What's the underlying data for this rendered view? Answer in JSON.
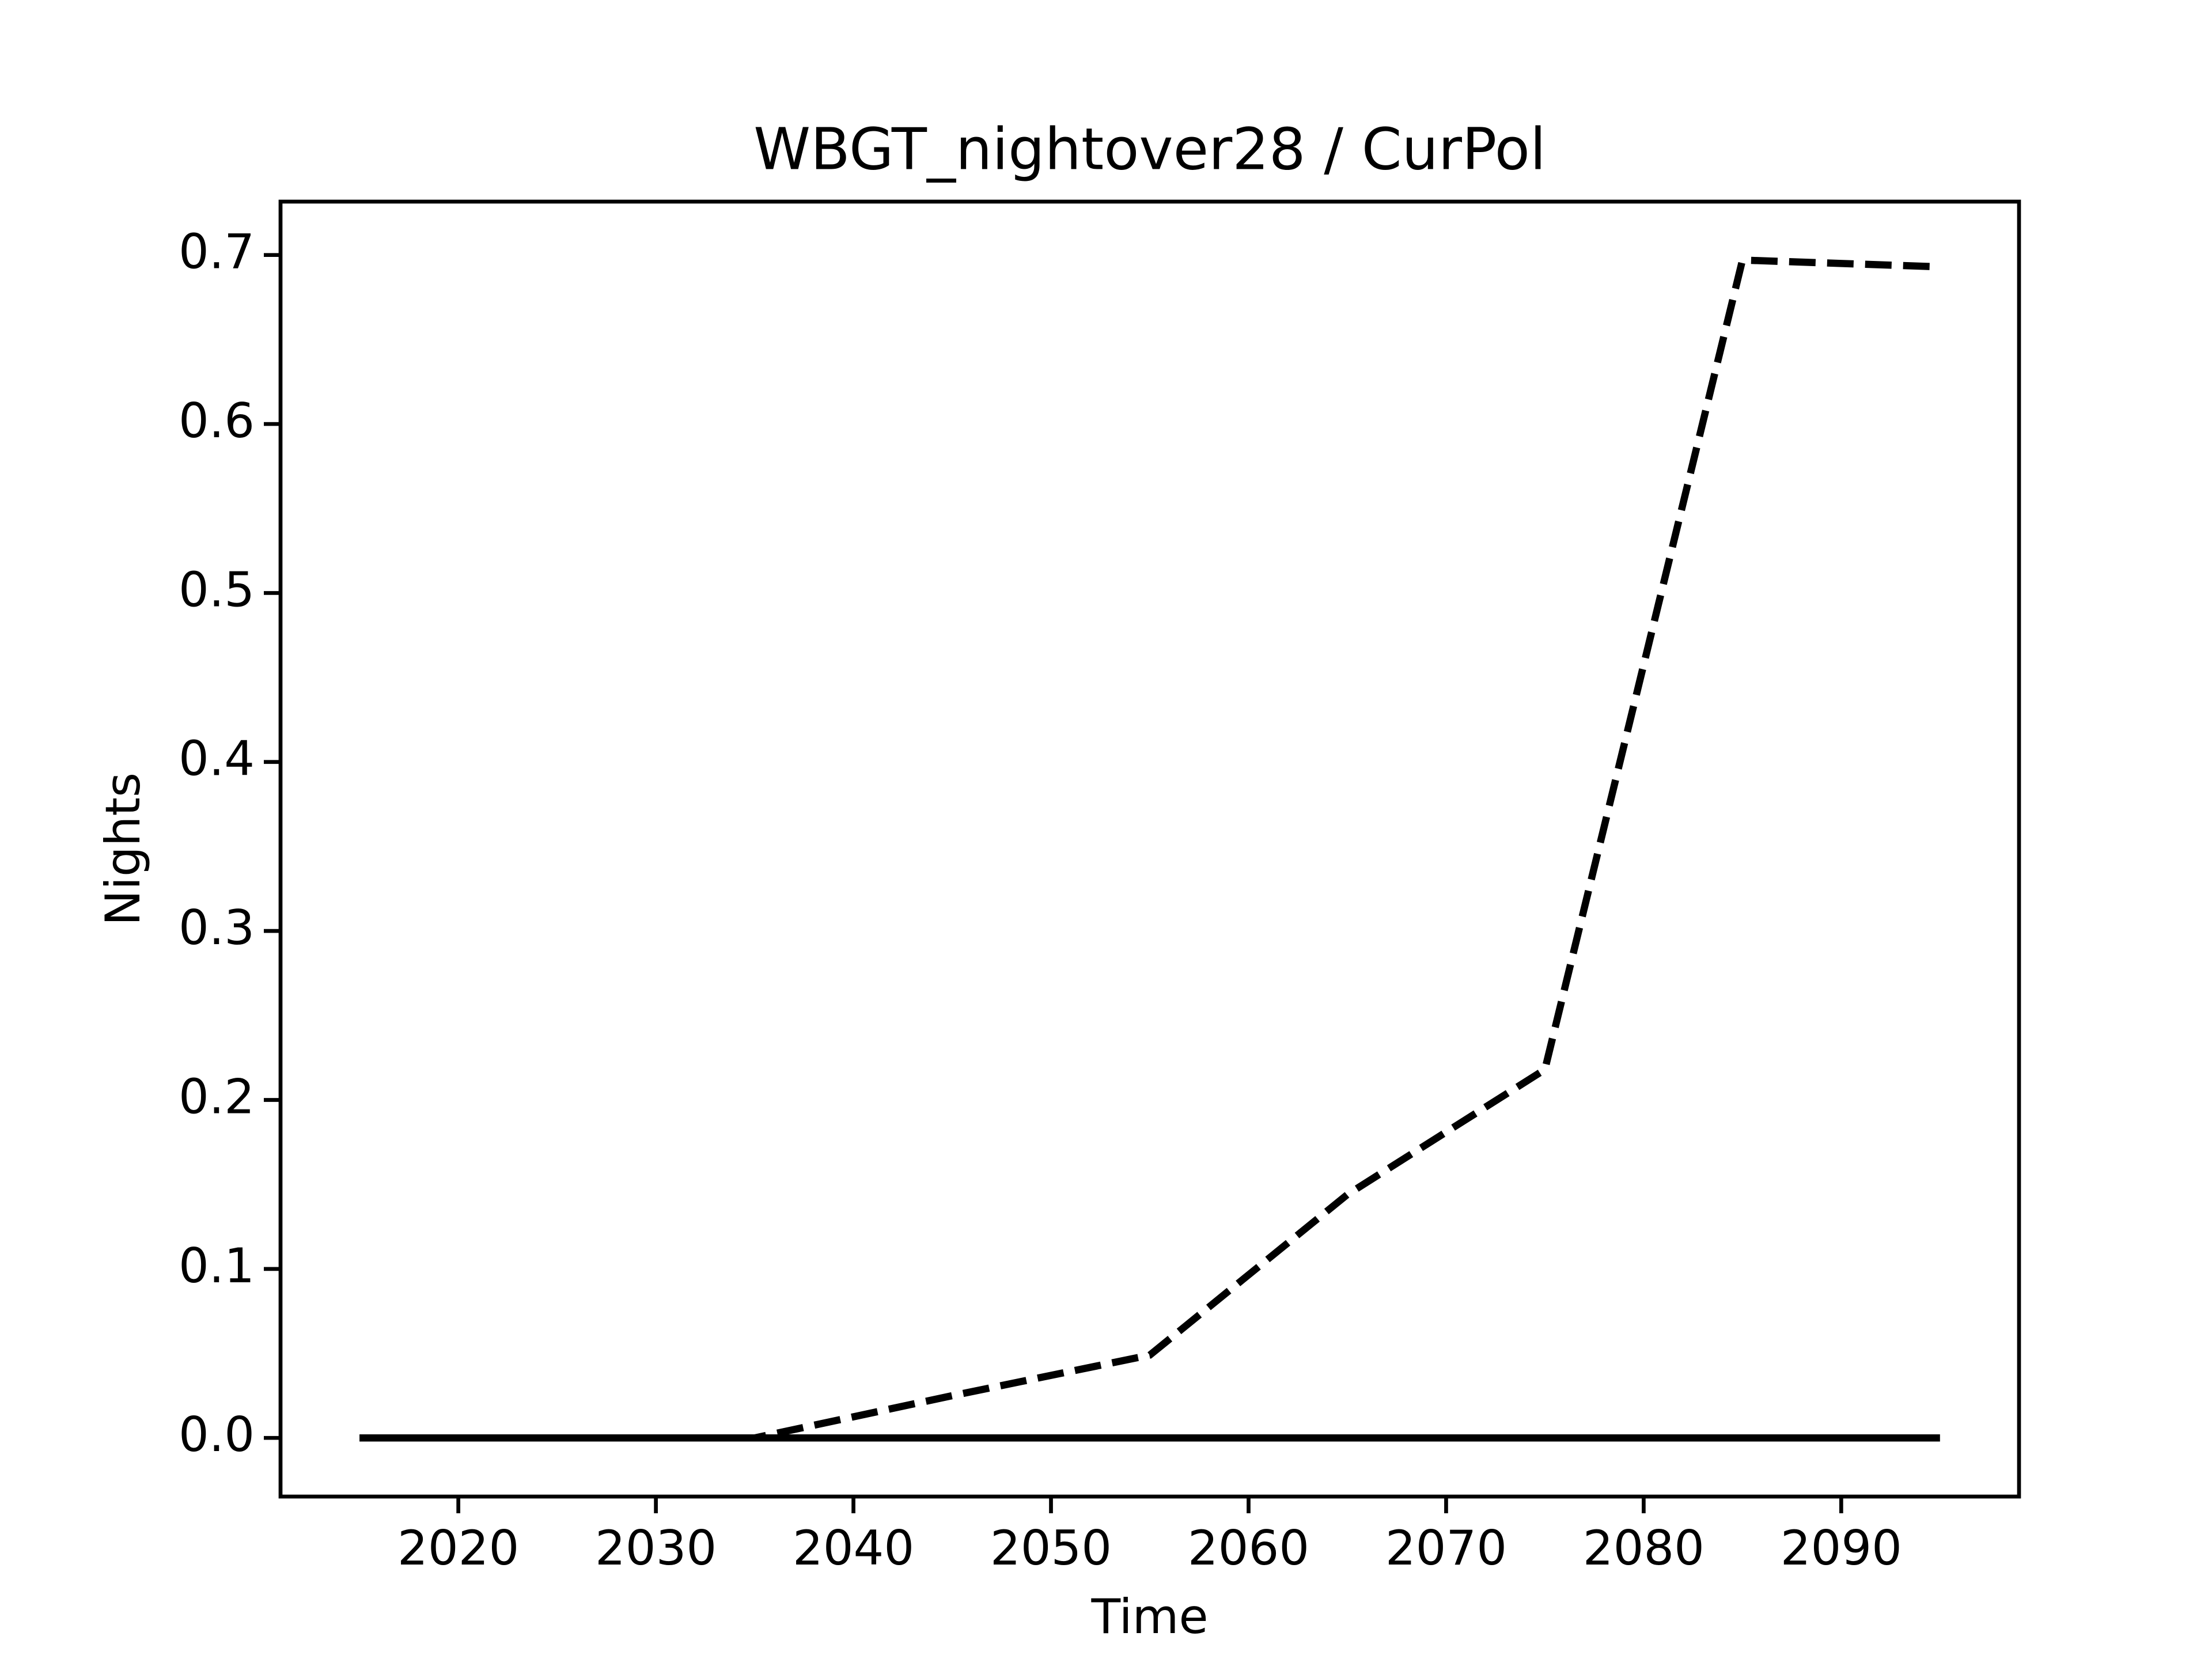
{
  "chart_data": {
    "type": "line",
    "title": "WBGT_nightover28 / CurPol",
    "x_label": "Time",
    "y_label": "Nights",
    "x": [
      2015,
      2025,
      2035,
      2045,
      2055,
      2065,
      2075,
      2085,
      2095
    ],
    "series": [
      {
        "color": "#000000",
        "dash": true,
        "values": [
          0,
          0,
          0,
          0.025,
          0.049,
          0.144,
          0.218,
          0.697,
          0.693
        ]
      },
      {
        "color": "#000000",
        "dash": false,
        "values": [
          0,
          0,
          0,
          0,
          0,
          0,
          0,
          0,
          0
        ]
      }
    ],
    "xlim": [
      2011,
      2099
    ],
    "xticks": [
      2020,
      2030,
      2040,
      2050,
      2060,
      2070,
      2080,
      2090
    ],
    "ylim": [
      -0.0347,
      0.7316
    ],
    "yticks": [
      {
        "value": 0,
        "label": "0.0"
      },
      0.1,
      0.2,
      0.3,
      0.4,
      0.5,
      0.6,
      0.7
    ],
    "grid": false
  }
}
